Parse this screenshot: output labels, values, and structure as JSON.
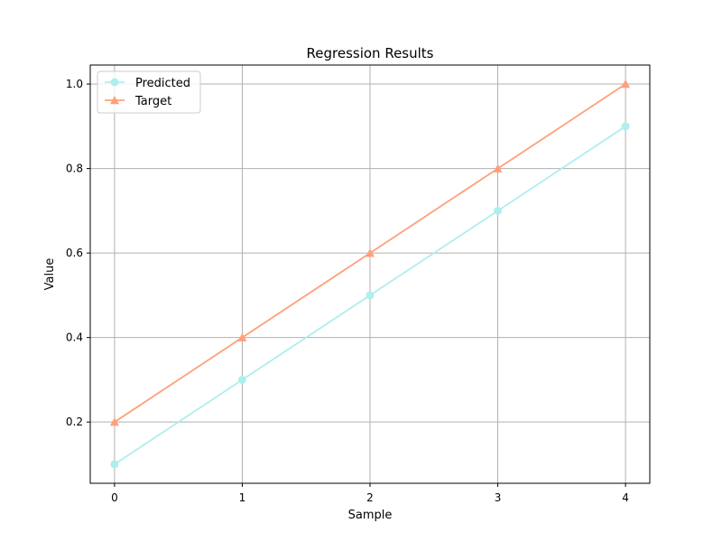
{
  "chart_data": {
    "type": "line",
    "title": "Regression Results",
    "xlabel": "Sample",
    "ylabel": "Value",
    "x": [
      0,
      1,
      2,
      3,
      4
    ],
    "xlim": [
      -0.19,
      4.19
    ],
    "ylim": [
      0.055,
      1.045
    ],
    "xticks": [
      0,
      1,
      2,
      3,
      4
    ],
    "xtick_labels": [
      "0",
      "1",
      "2",
      "3",
      "4"
    ],
    "yticks": [
      0.2,
      0.4,
      0.6,
      0.8,
      1.0
    ],
    "ytick_labels": [
      "0.2",
      "0.4",
      "0.6",
      "0.8",
      "1.0"
    ],
    "grid": true,
    "legend_position": "top-left",
    "series": [
      {
        "name": "Predicted",
        "values": [
          0.1,
          0.3,
          0.5,
          0.7,
          0.9
        ],
        "color": "#AFEEEE",
        "marker": "circle"
      },
      {
        "name": "Target",
        "values": [
          0.2,
          0.4,
          0.6,
          0.8,
          1.0
        ],
        "color": "#FFA07A",
        "marker": "triangle"
      }
    ]
  }
}
